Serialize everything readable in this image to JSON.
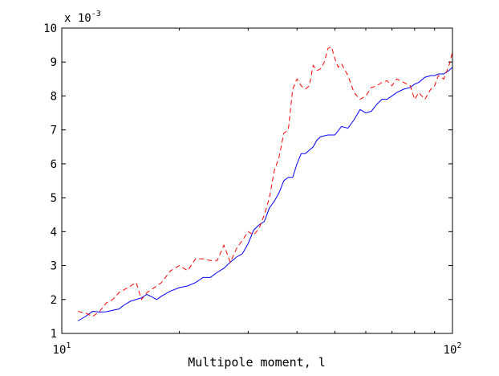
{
  "chart_data": {
    "type": "line",
    "title": "",
    "xlabel": "Multipole moment, l",
    "ylabel": "",
    "x_scale": "log",
    "xlim": [
      10,
      100
    ],
    "ylim": [
      1,
      10
    ],
    "y_multiplier_label": {
      "base": "x 10",
      "exponent": "-3"
    },
    "x_ticks": [
      {
        "value": 10,
        "base": "10",
        "exponent": "1"
      },
      {
        "value": 100,
        "base": "10",
        "exponent": "2"
      }
    ],
    "y_ticks": [
      "1",
      "2",
      "3",
      "4",
      "5",
      "6",
      "7",
      "8",
      "9",
      "10"
    ],
    "grid": false,
    "legend": "none",
    "series": [
      {
        "style": "solid",
        "color": "#0000ff",
        "x": [
          11,
          11.5,
          12,
          12.5,
          13,
          13.5,
          14,
          14.5,
          15,
          15.5,
          16,
          16.5,
          17,
          17.5,
          18,
          19,
          20,
          21,
          22,
          23,
          24,
          25,
          26,
          27,
          28,
          29,
          30,
          31,
          32,
          33,
          34,
          35,
          36,
          37,
          38,
          39,
          40,
          41,
          42,
          43,
          44,
          45,
          46,
          48,
          50,
          52,
          54,
          56,
          58,
          60,
          62,
          64,
          66,
          68,
          70,
          72,
          75,
          78,
          80,
          82,
          85,
          88,
          90,
          92,
          95,
          98,
          100
        ],
        "y": [
          1.37,
          1.5,
          1.65,
          1.63,
          1.64,
          1.68,
          1.72,
          1.85,
          1.95,
          2.0,
          2.05,
          2.15,
          2.08,
          2.0,
          2.1,
          2.25,
          2.35,
          2.4,
          2.5,
          2.65,
          2.65,
          2.8,
          2.92,
          3.1,
          3.25,
          3.35,
          3.65,
          4.05,
          4.2,
          4.3,
          4.7,
          4.9,
          5.15,
          5.5,
          5.6,
          5.6,
          6.0,
          6.3,
          6.3,
          6.4,
          6.5,
          6.7,
          6.8,
          6.85,
          6.85,
          7.1,
          7.05,
          7.3,
          7.6,
          7.5,
          7.55,
          7.75,
          7.9,
          7.9,
          8.0,
          8.1,
          8.2,
          8.25,
          8.35,
          8.4,
          8.55,
          8.6,
          8.6,
          8.65,
          8.65,
          8.75,
          8.85
        ]
      },
      {
        "style": "dashed",
        "color": "#ff0000",
        "x": [
          11,
          11.5,
          12,
          12.5,
          13,
          13.5,
          14,
          14.5,
          15,
          15.5,
          16,
          16.5,
          17,
          17.5,
          18,
          19,
          20,
          21,
          22,
          23,
          24,
          25,
          26,
          27,
          28,
          29,
          30,
          31,
          32,
          33,
          34,
          35,
          36,
          37,
          38,
          39,
          40,
          41,
          42,
          43,
          44,
          45,
          46,
          47,
          48,
          49,
          50,
          51,
          52,
          54,
          56,
          58,
          60,
          62,
          64,
          66,
          68,
          70,
          72,
          75,
          78,
          80,
          82,
          85,
          88,
          90,
          92,
          95,
          98,
          100
        ],
        "y": [
          1.65,
          1.6,
          1.5,
          1.65,
          1.9,
          2.0,
          2.2,
          2.3,
          2.4,
          2.5,
          2.0,
          2.2,
          2.3,
          2.4,
          2.5,
          2.85,
          3.0,
          2.85,
          3.2,
          3.2,
          3.15,
          3.15,
          3.6,
          3.1,
          3.5,
          3.75,
          4.0,
          3.9,
          4.1,
          4.5,
          5.0,
          5.8,
          6.2,
          6.9,
          7.0,
          8.2,
          8.5,
          8.3,
          8.2,
          8.3,
          8.9,
          8.75,
          8.8,
          9.0,
          9.4,
          9.45,
          9.1,
          8.85,
          8.95,
          8.6,
          8.1,
          7.9,
          8.0,
          8.25,
          8.3,
          8.4,
          8.45,
          8.3,
          8.5,
          8.4,
          8.3,
          7.9,
          8.1,
          7.9,
          8.2,
          8.3,
          8.6,
          8.5,
          8.9,
          9.3
        ]
      }
    ]
  }
}
